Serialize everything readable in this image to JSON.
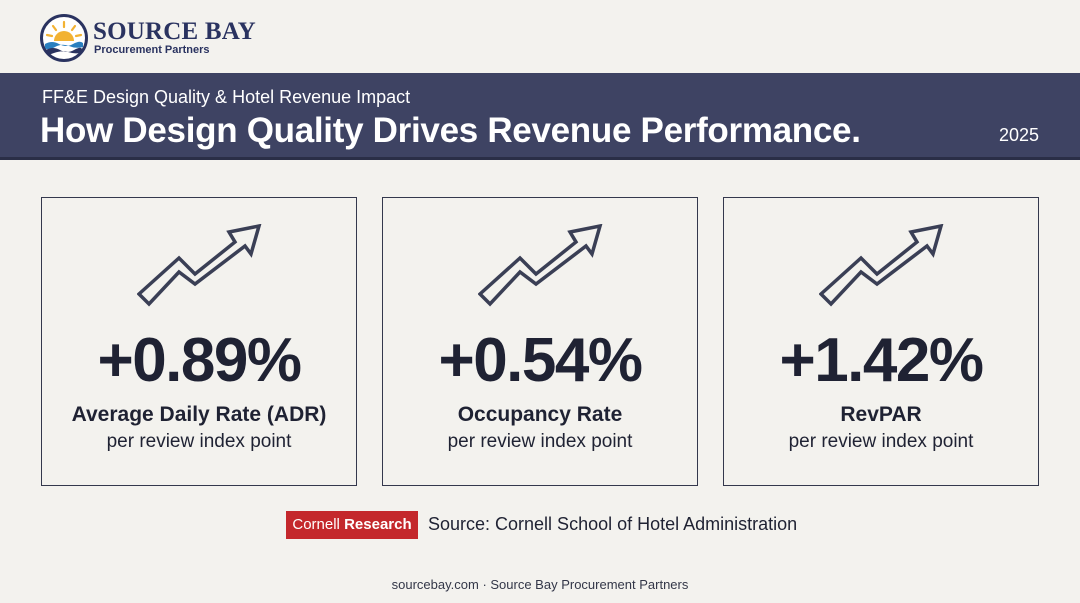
{
  "brand": {
    "name": "SOURCE BAY",
    "tagline": "Procurement Partners",
    "logo_icon": "sun-over-waves-icon",
    "colors": {
      "navy": "#2a3360",
      "sun": "#f2b233",
      "wave": "#2a7fbf"
    }
  },
  "header": {
    "kicker": "FF&E Design Quality & Hotel Revenue Impact",
    "title": "How Design Quality Drives Revenue Performance.",
    "year": "2025",
    "background": "#3e4363"
  },
  "stats": [
    {
      "icon": "trend-up-arrow-icon",
      "value": "+0.89%",
      "metric": "Average Daily Rate (ADR)",
      "unit": "per review index point"
    },
    {
      "icon": "trend-up-arrow-icon",
      "value": "+0.54%",
      "metric": "Occupancy Rate",
      "unit": "per review index point"
    },
    {
      "icon": "trend-up-arrow-icon",
      "value": "+1.42%",
      "metric": "RevPAR",
      "unit": "per review index point"
    }
  ],
  "source": {
    "badge_part1": "Cornell",
    "badge_part2": "Research",
    "badge_color": "#c4282c",
    "text": "Source: Cornell School of Hotel Administration"
  },
  "footer": {
    "text": "sourcebay.com · Source Bay Procurement Partners"
  }
}
